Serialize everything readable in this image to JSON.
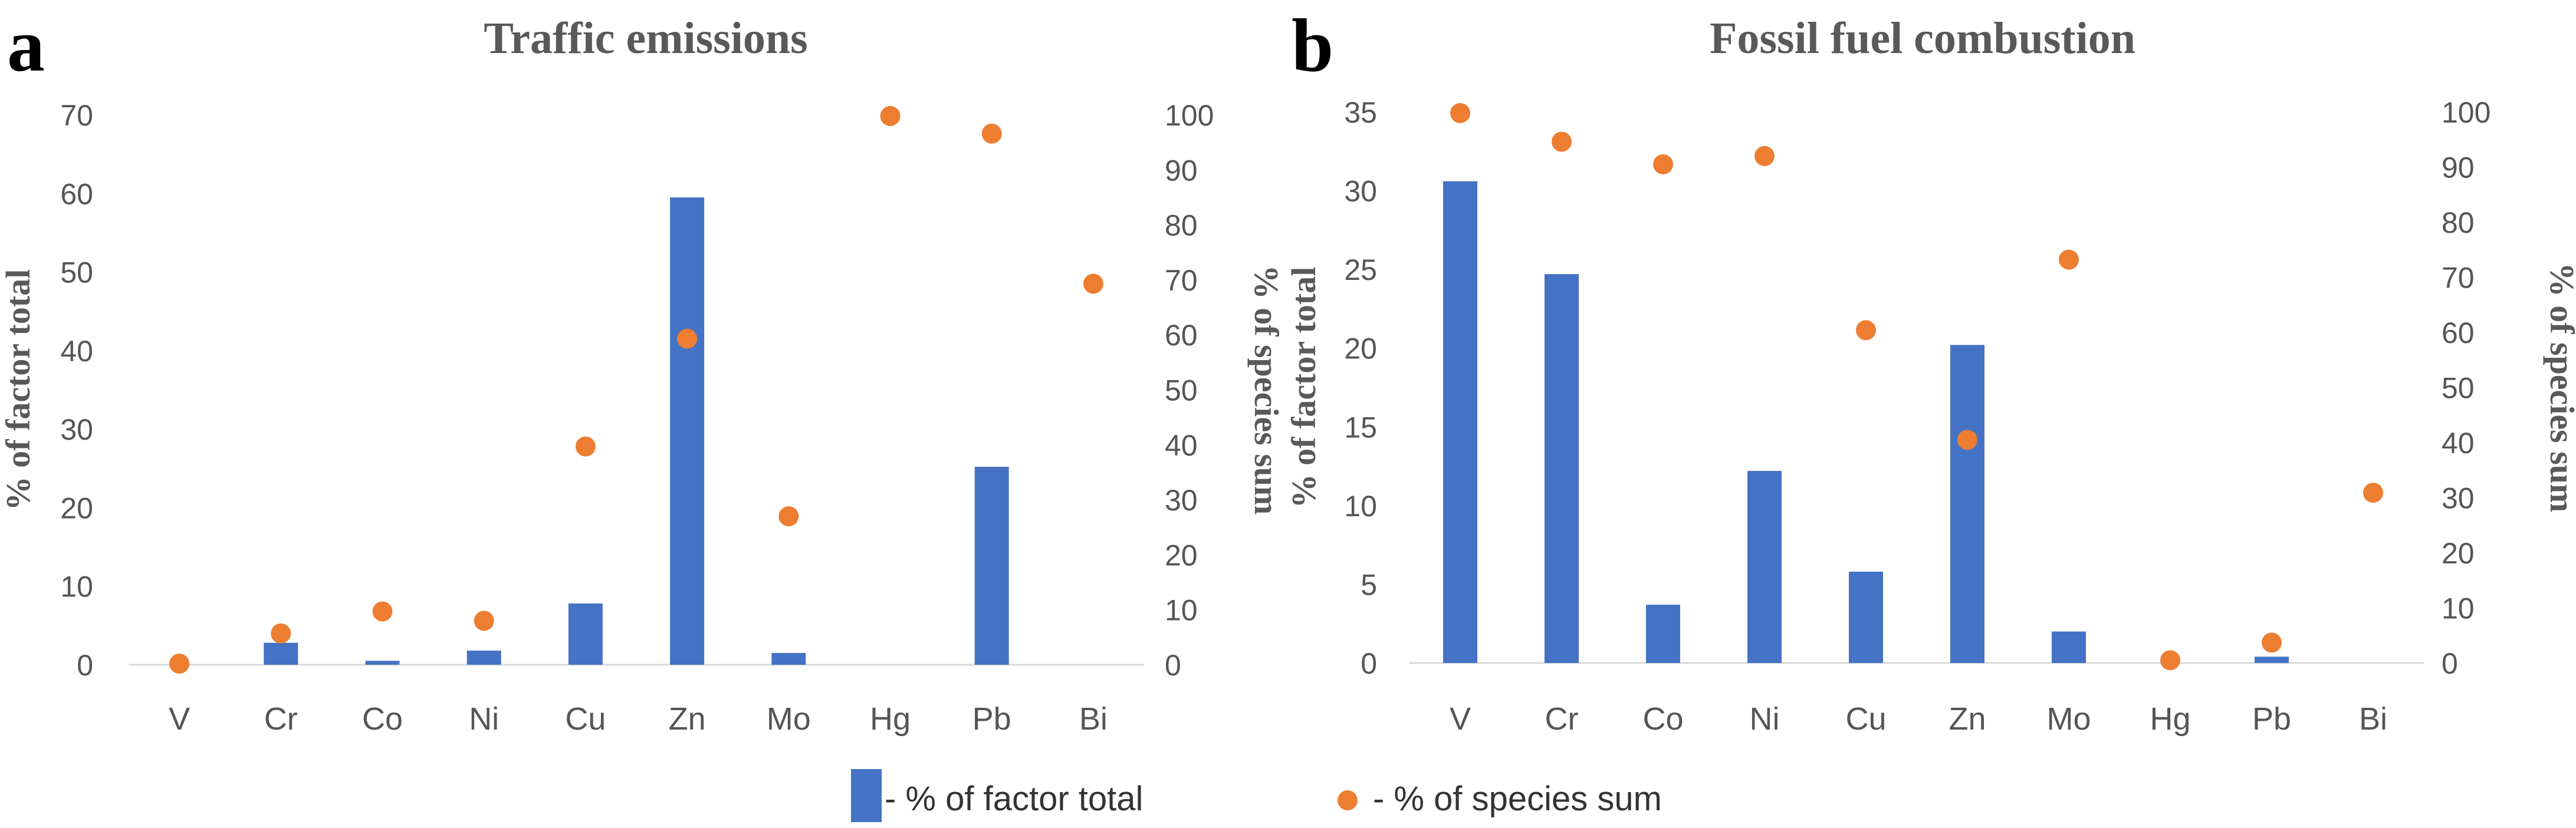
{
  "colors": {
    "bar": "#4472C4",
    "dot": "#ED7D31",
    "axis": "#D9D9D9",
    "text": "#555555"
  },
  "legend": {
    "bar_label": "- % of factor total",
    "dot_label": "- % of species sum"
  },
  "chart_data": [
    {
      "type": "bar",
      "panel": "a",
      "title": "Traffic  emissions",
      "categories": [
        "V",
        "Cr",
        "Co",
        "Ni",
        "Cu",
        "Zn",
        "Mo",
        "Hg",
        "Pb",
        "Bi"
      ],
      "ylabel": "% of factor total",
      "y2label": "% of species sum",
      "ylim": [
        0,
        70
      ],
      "y_ticks": [
        0,
        10,
        20,
        30,
        40,
        50,
        60,
        70
      ],
      "y2lim": [
        0,
        100
      ],
      "y2_ticks": [
        0,
        10,
        20,
        30,
        40,
        50,
        60,
        70,
        80,
        90,
        100
      ],
      "series": [
        {
          "name": "% of factor total",
          "kind": "bar",
          "axis": "left",
          "values": [
            0,
            2.8,
            0.5,
            1.8,
            7.8,
            59.5,
            1.5,
            0,
            25.2,
            0
          ]
        },
        {
          "name": "% of species sum",
          "kind": "scatter",
          "axis": "right",
          "values": [
            0.2,
            5.7,
            9.7,
            8.0,
            39.7,
            59.3,
            27.0,
            99.8,
            96.6,
            69.3
          ]
        }
      ]
    },
    {
      "type": "bar",
      "panel": "b",
      "title": "Fossil fuel combustion",
      "categories": [
        "V",
        "Cr",
        "Co",
        "Ni",
        "Cu",
        "Zn",
        "Mo",
        "Hg",
        "Pb",
        "Bi"
      ],
      "ylabel": "% of factor total",
      "y2label": "% of species sum",
      "ylim": [
        0,
        35
      ],
      "y_ticks": [
        0,
        5,
        10,
        15,
        20,
        25,
        30,
        35
      ],
      "y2lim": [
        0,
        100
      ],
      "y2_ticks": [
        0,
        10,
        20,
        30,
        40,
        50,
        60,
        70,
        80,
        90,
        100
      ],
      "series": [
        {
          "name": "% of factor total",
          "kind": "bar",
          "axis": "left",
          "values": [
            30.6,
            24.7,
            3.7,
            12.2,
            5.8,
            20.2,
            2.0,
            0,
            0.4,
            0
          ]
        },
        {
          "name": "% of species sum",
          "kind": "scatter",
          "axis": "right",
          "values": [
            99.8,
            94.6,
            90.5,
            92.0,
            60.4,
            40.5,
            73.2,
            0.5,
            3.7,
            30.9
          ]
        }
      ]
    }
  ]
}
